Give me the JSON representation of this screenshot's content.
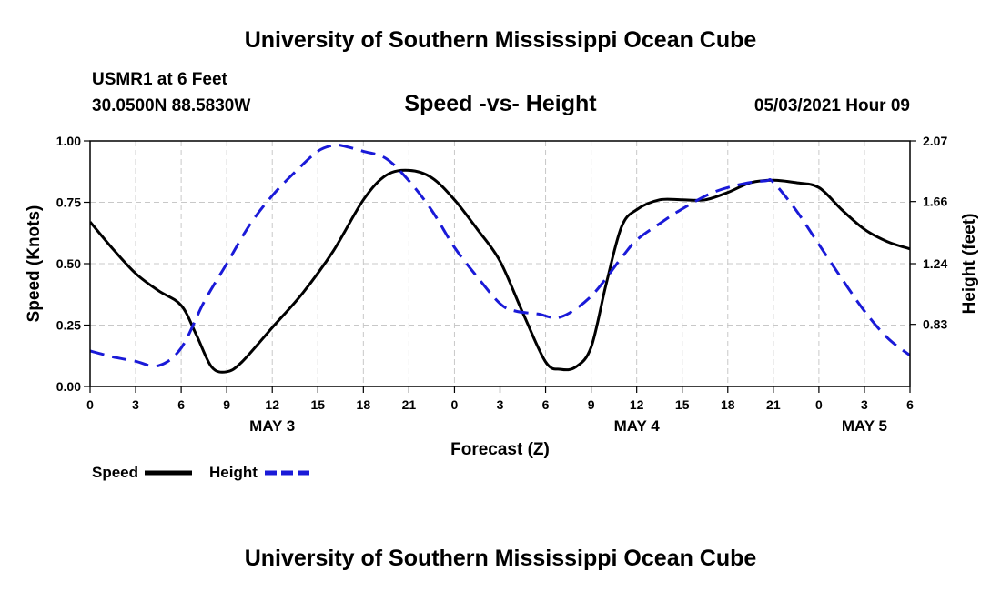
{
  "header": {
    "title": "University of Southern Mississippi Ocean Cube",
    "station": "USMR1 at 6 Feet",
    "coordinates": "30.0500N  88.5830W",
    "subtitle": "Speed -vs- Height",
    "datetime": "05/03/2021 Hour 09"
  },
  "footer": {
    "title": "University of Southern Mississippi Ocean Cube"
  },
  "colors": {
    "speed": "#000000",
    "height": "#1a1ad8",
    "grid": "#c8c8c8"
  },
  "chart_data": {
    "type": "line",
    "title": "Speed -vs- Height",
    "xlabel": "Forecast (Z)",
    "ylabel": "Speed (Knots)",
    "y2label": "Height (feet)",
    "xlim": [
      0,
      54
    ],
    "ylim": [
      0,
      1
    ],
    "y2lim": [
      0.41,
      2.07
    ],
    "x_ticks": [
      0,
      3,
      6,
      9,
      12,
      15,
      18,
      21,
      24,
      27,
      30,
      33,
      36,
      39,
      42,
      45,
      48,
      51,
      54
    ],
    "x_tick_labels": [
      "0",
      "3",
      "6",
      "9",
      "12",
      "15",
      "18",
      "21",
      "0",
      "3",
      "6",
      "9",
      "12",
      "15",
      "18",
      "21",
      "0",
      "3",
      "6"
    ],
    "day_labels": [
      {
        "x": 12,
        "label": "MAY 3"
      },
      {
        "x": 36,
        "label": "MAY 4"
      },
      {
        "x": 51,
        "label": "MAY 5"
      }
    ],
    "y_ticks": [
      0,
      0.25,
      0.5,
      0.75,
      1.0
    ],
    "y_tick_labels": [
      "0.00",
      "0.25",
      "0.50",
      "0.75",
      "1.00"
    ],
    "y2_ticks": [
      0.83,
      1.24,
      1.66,
      2.07
    ],
    "y2_tick_labels": [
      "0.83",
      "1.24",
      "1.66",
      "2.07"
    ],
    "grid": true,
    "series": [
      {
        "name": "Speed",
        "axis": "left",
        "style": "solid",
        "x": [
          0,
          1.5,
          3,
          4.5,
          6,
          7,
          8,
          9,
          10,
          12,
          14,
          16,
          18,
          19.5,
          21,
          22.5,
          24,
          25.5,
          27,
          28.5,
          30,
          31,
          32,
          33,
          34,
          35,
          36,
          37.5,
          39,
          40.5,
          42,
          43.5,
          45,
          46.5,
          48,
          49.5,
          51,
          52.5,
          54
        ],
        "values": [
          0.67,
          0.56,
          0.46,
          0.39,
          0.33,
          0.21,
          0.08,
          0.06,
          0.1,
          0.24,
          0.38,
          0.55,
          0.76,
          0.86,
          0.88,
          0.85,
          0.76,
          0.64,
          0.51,
          0.3,
          0.1,
          0.07,
          0.08,
          0.16,
          0.42,
          0.65,
          0.72,
          0.76,
          0.76,
          0.76,
          0.79,
          0.83,
          0.84,
          0.83,
          0.81,
          0.72,
          0.64,
          0.59,
          0.56
        ]
      },
      {
        "name": "Height",
        "axis": "right",
        "style": "dashed",
        "x": [
          0,
          1.5,
          3,
          4.5,
          6,
          7.5,
          9,
          10.5,
          12,
          13.5,
          15,
          16,
          16.5,
          18,
          19.5,
          21,
          22.5,
          24,
          25.5,
          27,
          28,
          29.5,
          31,
          33,
          35,
          36,
          37.5,
          39,
          41,
          43,
          44.5,
          45,
          46.5,
          48,
          49.5,
          51,
          52.5,
          54
        ],
        "values": [
          0.65,
          0.61,
          0.58,
          0.55,
          0.67,
          0.98,
          1.24,
          1.5,
          1.7,
          1.86,
          2.0,
          2.04,
          2.04,
          2.0,
          1.95,
          1.8,
          1.6,
          1.35,
          1.15,
          0.97,
          0.92,
          0.9,
          0.88,
          1.02,
          1.28,
          1.4,
          1.51,
          1.61,
          1.72,
          1.78,
          1.8,
          1.79,
          1.6,
          1.37,
          1.14,
          0.92,
          0.74,
          0.62
        ]
      }
    ],
    "legend": [
      {
        "name": "Speed",
        "label": "Speed"
      },
      {
        "name": "Height",
        "label": "Height"
      }
    ],
    "legend_position": "bottom-left"
  }
}
